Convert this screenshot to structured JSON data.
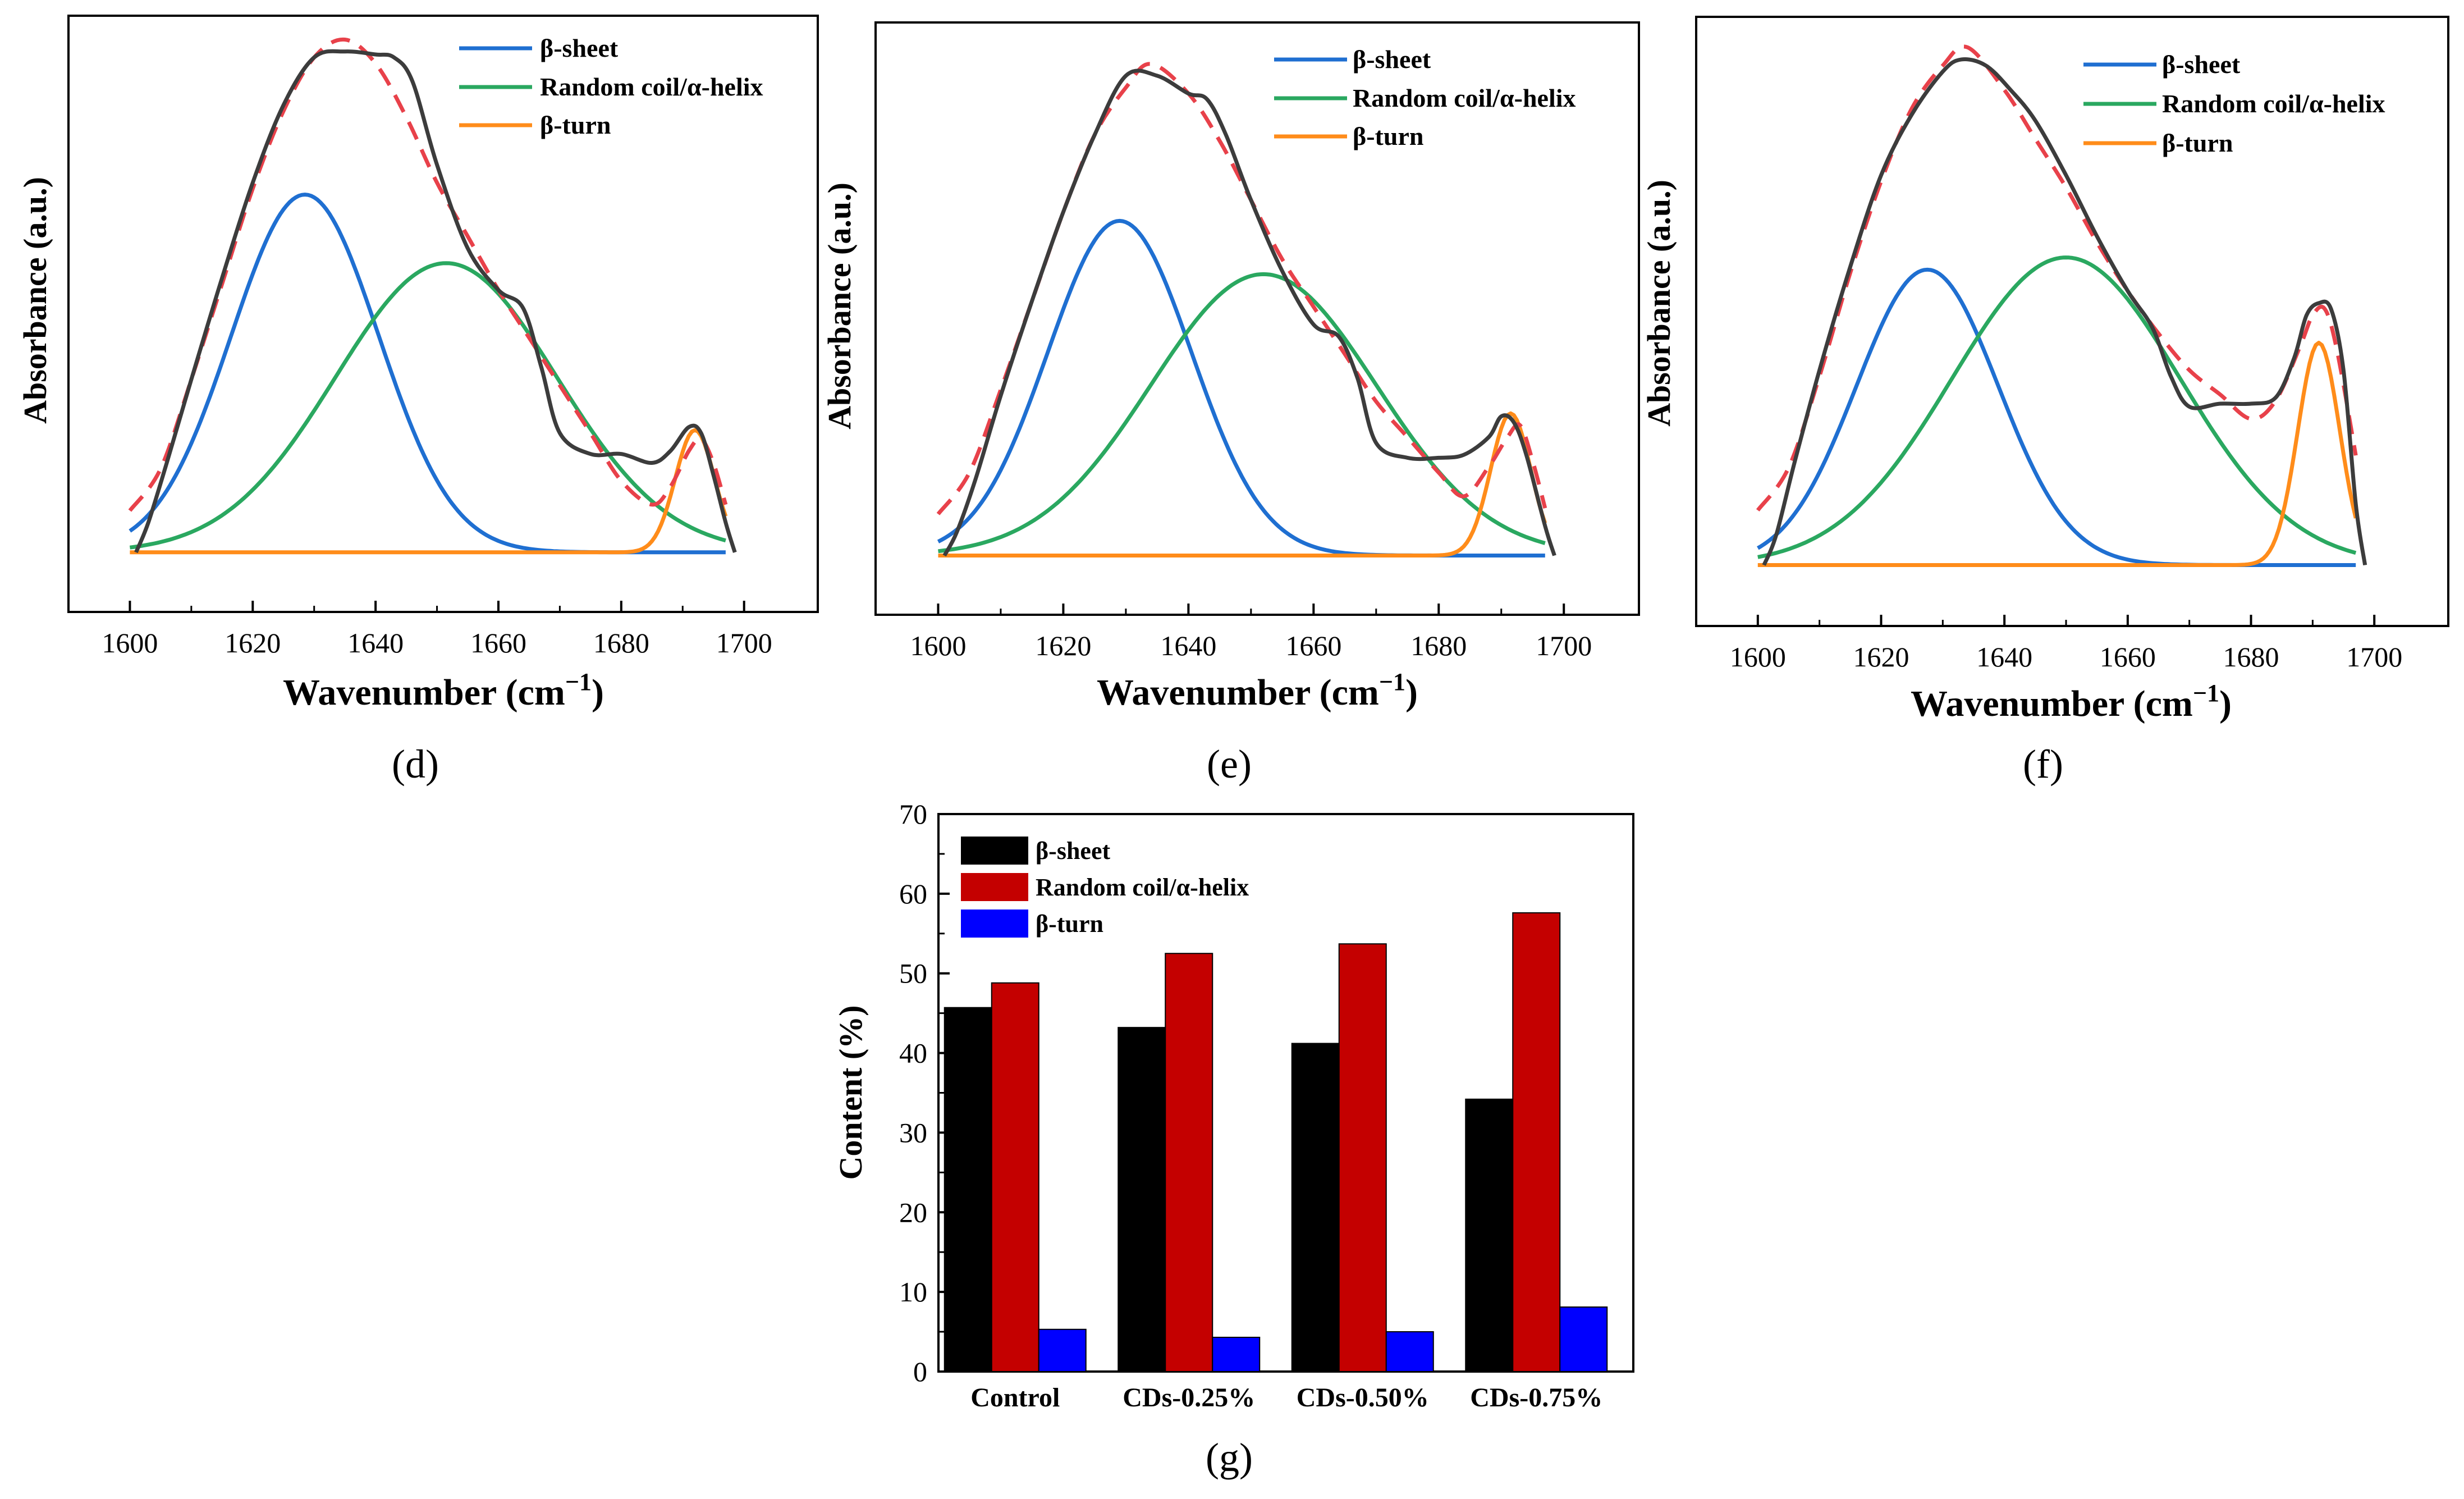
{
  "figure": {
    "colors": {
      "beta_sheet": "#1f6fd1",
      "random_coil": "#2aa860",
      "beta_turn": "#ff8c1a",
      "fit": "#e8414a",
      "raw": "#3c3c3c",
      "bar_sheet": "#000000",
      "bar_coil": "#c40000",
      "bar_turn": "#0000ff"
    }
  },
  "chart_data": [
    {
      "panel": "d",
      "type": "line",
      "xlabel": "Wavenumber (cm−1)",
      "xlabel_main": "Wavenumber (cm",
      "xlabel_sup": "−1",
      "xlabel_close": ")",
      "ylabel": "Absorbance (a.u.)",
      "xlim": [
        1590,
        1712
      ],
      "ylim": [
        0,
        100
      ],
      "xticks": [
        1600,
        1620,
        1640,
        1660,
        1680,
        1700
      ],
      "yticks_shown": false,
      "legend": [
        "β-sheet",
        "Random coil/α-helix",
        "β-turn"
      ],
      "legend_position": "top-right",
      "components": {
        "beta_sheet": {
          "center": 1628.5,
          "width": 12,
          "height": 60,
          "x_range": [
            1600,
            1697
          ]
        },
        "random_coil": {
          "center": 1651.5,
          "width": 18,
          "height": 48.5,
          "x_range": [
            1600,
            1697
          ]
        },
        "beta_turn": {
          "center": 1692,
          "width": 3.2,
          "height": 20.5,
          "x_range": [
            1600,
            1697
          ]
        }
      },
      "baseline": 10,
      "raw_trace": [
        [
          1601,
          10
        ],
        [
          1603,
          15
        ],
        [
          1606,
          25
        ],
        [
          1610,
          39
        ],
        [
          1615,
          56
        ],
        [
          1620,
          72
        ],
        [
          1625,
          85
        ],
        [
          1630,
          93
        ],
        [
          1635,
          94
        ],
        [
          1640,
          93.5
        ],
        [
          1643,
          93
        ],
        [
          1646,
          89
        ],
        [
          1650,
          75
        ],
        [
          1655,
          61
        ],
        [
          1660,
          54
        ],
        [
          1664,
          51
        ],
        [
          1667,
          41
        ],
        [
          1670,
          30
        ],
        [
          1675,
          26.5
        ],
        [
          1680,
          26.5
        ],
        [
          1685,
          25
        ],
        [
          1688,
          27
        ],
        [
          1691,
          31
        ],
        [
          1693,
          30
        ],
        [
          1695,
          23
        ],
        [
          1697,
          15
        ],
        [
          1698.5,
          10
        ]
      ],
      "fit_trace": [
        [
          1600,
          17
        ],
        [
          1605,
          24
        ],
        [
          1610,
          39
        ],
        [
          1615,
          55
        ],
        [
          1620,
          71
        ],
        [
          1625,
          84
        ],
        [
          1630,
          93
        ],
        [
          1635,
          96
        ],
        [
          1640,
          92
        ],
        [
          1645,
          83
        ],
        [
          1650,
          72
        ],
        [
          1655,
          63
        ],
        [
          1660,
          54
        ],
        [
          1665,
          46
        ],
        [
          1670,
          38
        ],
        [
          1675,
          30
        ],
        [
          1680,
          22
        ],
        [
          1685,
          18
        ],
        [
          1688,
          21
        ],
        [
          1691,
          27
        ],
        [
          1693,
          29
        ],
        [
          1695,
          25
        ],
        [
          1697,
          18
        ]
      ]
    },
    {
      "panel": "e",
      "type": "line",
      "xlabel": "Wavenumber (cm−1)",
      "xlabel_main": "Wavenumber (cm",
      "xlabel_sup": "−1",
      "xlabel_close": ")",
      "ylabel": "Absorbance (a.u.)",
      "xlim": [
        1590,
        1712
      ],
      "ylim": [
        0,
        100
      ],
      "xticks": [
        1600,
        1620,
        1640,
        1660,
        1680,
        1700
      ],
      "yticks_shown": false,
      "legend": [
        "β-sheet",
        "Random coil/α-helix",
        "β-turn"
      ],
      "legend_position": "top-right",
      "components": {
        "beta_sheet": {
          "center": 1629,
          "width": 11.5,
          "height": 56.5,
          "x_range": [
            1600,
            1697
          ]
        },
        "random_coil": {
          "center": 1652,
          "width": 18,
          "height": 47.5,
          "x_range": [
            1600,
            1697
          ]
        },
        "beta_turn": {
          "center": 1691.5,
          "width": 3.2,
          "height": 24,
          "x_range": [
            1600,
            1697
          ]
        }
      },
      "baseline": 10,
      "raw_trace": [
        [
          1601,
          10
        ],
        [
          1603,
          14
        ],
        [
          1606,
          23
        ],
        [
          1610,
          37
        ],
        [
          1615,
          53
        ],
        [
          1620,
          68
        ],
        [
          1625,
          81
        ],
        [
          1630,
          91
        ],
        [
          1635,
          91
        ],
        [
          1640,
          88
        ],
        [
          1643,
          87
        ],
        [
          1646,
          81
        ],
        [
          1650,
          70
        ],
        [
          1655,
          58
        ],
        [
          1660,
          49
        ],
        [
          1664,
          47
        ],
        [
          1667,
          40
        ],
        [
          1670,
          29
        ],
        [
          1675,
          26.5
        ],
        [
          1680,
          26.5
        ],
        [
          1684,
          27
        ],
        [
          1688,
          30
        ],
        [
          1690,
          33.5
        ],
        [
          1692,
          32.5
        ],
        [
          1694,
          27
        ],
        [
          1697,
          15
        ],
        [
          1698.5,
          10
        ]
      ],
      "fit_trace": [
        [
          1600,
          17
        ],
        [
          1605,
          24
        ],
        [
          1610,
          38
        ],
        [
          1615,
          53
        ],
        [
          1620,
          68
        ],
        [
          1625,
          81
        ],
        [
          1630,
          89
        ],
        [
          1634,
          93
        ],
        [
          1640,
          88
        ],
        [
          1645,
          80
        ],
        [
          1650,
          70
        ],
        [
          1655,
          60
        ],
        [
          1660,
          52
        ],
        [
          1665,
          44
        ],
        [
          1670,
          36
        ],
        [
          1675,
          30
        ],
        [
          1680,
          24
        ],
        [
          1684,
          20
        ],
        [
          1688,
          25
        ],
        [
          1691,
          30
        ],
        [
          1693,
          32
        ],
        [
          1695,
          26
        ],
        [
          1697,
          18
        ]
      ]
    },
    {
      "panel": "f",
      "type": "line",
      "xlabel": "Wavenumber (cm−1)",
      "xlabel_main": "Wavenumber (cm",
      "xlabel_sup": "−1",
      "xlabel_close": ")",
      "ylabel": "Absorbance (a.u.)",
      "xlim": [
        1590,
        1712
      ],
      "ylim": [
        0,
        100
      ],
      "xticks": [
        1600,
        1620,
        1640,
        1660,
        1680,
        1700
      ],
      "yticks_shown": false,
      "legend": [
        "β-sheet",
        "Random coil/α-helix",
        "β-turn"
      ],
      "legend_position": "top-right",
      "components": {
        "beta_sheet": {
          "center": 1627.5,
          "width": 11.5,
          "height": 48.5,
          "x_range": [
            1600,
            1697
          ]
        },
        "random_coil": {
          "center": 1650,
          "width": 18.5,
          "height": 50.5,
          "x_range": [
            1600,
            1697
          ]
        },
        "beta_turn": {
          "center": 1691,
          "width": 3.4,
          "height": 36.5,
          "x_range": [
            1600,
            1697
          ]
        }
      },
      "baseline": 10,
      "raw_trace": [
        [
          1601,
          10
        ],
        [
          1603,
          15
        ],
        [
          1606,
          27
        ],
        [
          1610,
          42
        ],
        [
          1615,
          59
        ],
        [
          1620,
          74
        ],
        [
          1625,
          84
        ],
        [
          1630,
          91
        ],
        [
          1633,
          93
        ],
        [
          1637,
          92
        ],
        [
          1641,
          88
        ],
        [
          1645,
          83
        ],
        [
          1650,
          74
        ],
        [
          1655,
          64
        ],
        [
          1660,
          55
        ],
        [
          1664,
          49
        ],
        [
          1667,
          41
        ],
        [
          1670,
          36
        ],
        [
          1675,
          36.5
        ],
        [
          1680,
          36.5
        ],
        [
          1684,
          37.5
        ],
        [
          1687,
          44
        ],
        [
          1689,
          51
        ],
        [
          1691,
          53
        ],
        [
          1693,
          52
        ],
        [
          1695,
          42
        ],
        [
          1697,
          20
        ],
        [
          1698.5,
          10
        ]
      ],
      "fit_trace": [
        [
          1600,
          19
        ],
        [
          1605,
          26
        ],
        [
          1610,
          41
        ],
        [
          1615,
          58
        ],
        [
          1620,
          73
        ],
        [
          1625,
          85
        ],
        [
          1630,
          92
        ],
        [
          1634,
          95
        ],
        [
          1640,
          88
        ],
        [
          1645,
          80
        ],
        [
          1650,
          72
        ],
        [
          1655,
          63
        ],
        [
          1660,
          55
        ],
        [
          1665,
          48
        ],
        [
          1670,
          42
        ],
        [
          1675,
          38
        ],
        [
          1680,
          34
        ],
        [
          1684,
          37
        ],
        [
          1688,
          46
        ],
        [
          1690,
          51
        ],
        [
          1692,
          52
        ],
        [
          1694,
          45
        ],
        [
          1697,
          28
        ]
      ]
    },
    {
      "panel": "g",
      "type": "bar",
      "categories": [
        "Control",
        "CDs-0.25%",
        "CDs-0.50%",
        "CDs-0.75%"
      ],
      "series": [
        {
          "name": "β-sheet",
          "values": [
            45.7,
            43.2,
            41.2,
            34.2
          ]
        },
        {
          "name": "Random coil/α-helix",
          "values": [
            48.8,
            52.5,
            53.7,
            57.6
          ]
        },
        {
          "name": "β-turn",
          "values": [
            5.3,
            4.3,
            5.0,
            8.1
          ]
        }
      ],
      "xlabel": "",
      "ylabel": "Content (%)",
      "ylim": [
        0,
        70
      ],
      "yticks": [
        0,
        10,
        20,
        30,
        40,
        50,
        60,
        70
      ],
      "legend_position": "top-left"
    }
  ],
  "panel_labels": {
    "d": "(d)",
    "e": "(e)",
    "f": "(f)",
    "g": "(g)"
  }
}
